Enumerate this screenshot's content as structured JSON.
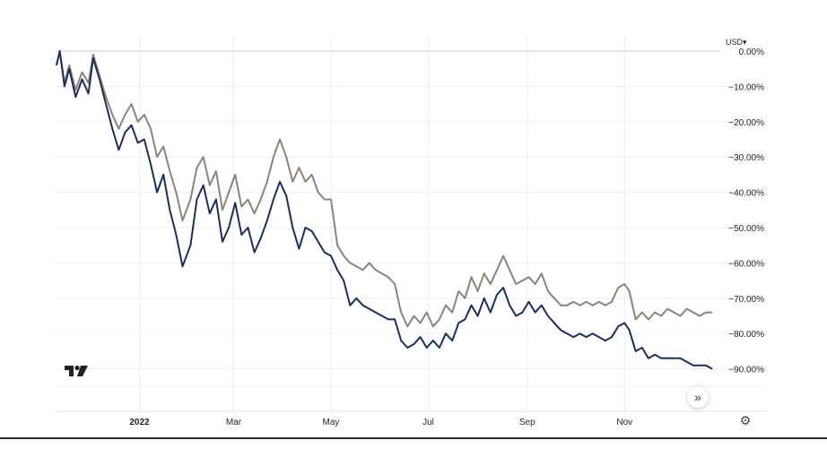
{
  "currency_selector": {
    "label": "USD",
    "icon": "caret-down-icon"
  },
  "scroll_button": {
    "label": "»",
    "icon": "double-chevron-right-icon"
  },
  "settings": {
    "icon": "gear-icon",
    "glyph": "⚙"
  },
  "logo": {
    "icon": "tradingview-logo-icon"
  },
  "colors": {
    "series_dark": "#1c2e5c",
    "series_gray": "#8c8479",
    "grid": "#ebedf0"
  },
  "chart_data": {
    "type": "line",
    "title": "",
    "xlabel": "",
    "ylabel": "",
    "ylim": [
      -93,
      0
    ],
    "y_ticks": [
      "0.00%",
      "−10.00%",
      "−20.00%",
      "−30.00%",
      "−40.00%",
      "−50.00%",
      "−60.00%",
      "−70.00%",
      "−80.00%",
      "−90.00%"
    ],
    "y_tick_values": [
      0,
      -10,
      -20,
      -30,
      -40,
      -50,
      -60,
      -70,
      -80,
      -90
    ],
    "x_ticks": [
      "2022",
      "Mar",
      "May",
      "Jul",
      "Sep",
      "Nov"
    ],
    "x_tick_dates": [
      "2022-01-01",
      "2022-03-01",
      "2022-05-01",
      "2022-07-01",
      "2022-09-01",
      "2022-11-01"
    ],
    "x_range": [
      "2021-11-10",
      "2022-12-31"
    ],
    "grid": true,
    "series": [
      {
        "color": "#1c2e5c",
        "points": [
          [
            "2021-11-10",
            -4
          ],
          [
            "2021-11-12",
            0
          ],
          [
            "2021-11-15",
            -10
          ],
          [
            "2021-11-18",
            -5
          ],
          [
            "2021-11-22",
            -13
          ],
          [
            "2021-11-26",
            -8
          ],
          [
            "2021-11-30",
            -12
          ],
          [
            "2021-12-03",
            -2
          ],
          [
            "2021-12-07",
            -8
          ],
          [
            "2021-12-11",
            -15
          ],
          [
            "2021-12-15",
            -22
          ],
          [
            "2021-12-19",
            -28
          ],
          [
            "2021-12-23",
            -23
          ],
          [
            "2021-12-27",
            -21
          ],
          [
            "2021-12-31",
            -26
          ],
          [
            "2022-01-04",
            -25
          ],
          [
            "2022-01-08",
            -32
          ],
          [
            "2022-01-12",
            -40
          ],
          [
            "2022-01-16",
            -35
          ],
          [
            "2022-01-20",
            -45
          ],
          [
            "2022-01-24",
            -52
          ],
          [
            "2022-01-28",
            -61
          ],
          [
            "2022-02-02",
            -55
          ],
          [
            "2022-02-06",
            -42
          ],
          [
            "2022-02-10",
            -38
          ],
          [
            "2022-02-14",
            -46
          ],
          [
            "2022-02-18",
            -42
          ],
          [
            "2022-02-22",
            -54
          ],
          [
            "2022-02-26",
            -50
          ],
          [
            "2022-03-02",
            -43
          ],
          [
            "2022-03-06",
            -52
          ],
          [
            "2022-03-10",
            -50
          ],
          [
            "2022-03-14",
            -57
          ],
          [
            "2022-03-18",
            -53
          ],
          [
            "2022-03-22",
            -48
          ],
          [
            "2022-03-26",
            -42
          ],
          [
            "2022-03-30",
            -37
          ],
          [
            "2022-04-03",
            -41
          ],
          [
            "2022-04-07",
            -50
          ],
          [
            "2022-04-11",
            -56
          ],
          [
            "2022-04-15",
            -50
          ],
          [
            "2022-04-19",
            -51
          ],
          [
            "2022-04-23",
            -54
          ],
          [
            "2022-04-27",
            -57
          ],
          [
            "2022-05-01",
            -58
          ],
          [
            "2022-05-05",
            -62
          ],
          [
            "2022-05-09",
            -65
          ],
          [
            "2022-05-13",
            -72
          ],
          [
            "2022-05-17",
            -70
          ],
          [
            "2022-05-21",
            -72
          ],
          [
            "2022-05-25",
            -73
          ],
          [
            "2022-05-29",
            -74
          ],
          [
            "2022-06-02",
            -75
          ],
          [
            "2022-06-06",
            -76
          ],
          [
            "2022-06-10",
            -76
          ],
          [
            "2022-06-14",
            -82
          ],
          [
            "2022-06-18",
            -84
          ],
          [
            "2022-06-22",
            -83
          ],
          [
            "2022-06-26",
            -81
          ],
          [
            "2022-06-30",
            -84
          ],
          [
            "2022-07-04",
            -82
          ],
          [
            "2022-07-08",
            -84
          ],
          [
            "2022-07-12",
            -80
          ],
          [
            "2022-07-16",
            -82
          ],
          [
            "2022-07-20",
            -77
          ],
          [
            "2022-07-24",
            -76
          ],
          [
            "2022-07-28",
            -72
          ],
          [
            "2022-08-01",
            -75
          ],
          [
            "2022-08-05",
            -70
          ],
          [
            "2022-08-09",
            -74
          ],
          [
            "2022-08-13",
            -69
          ],
          [
            "2022-08-17",
            -67
          ],
          [
            "2022-08-21",
            -72
          ],
          [
            "2022-08-25",
            -75
          ],
          [
            "2022-08-29",
            -74
          ],
          [
            "2022-09-02",
            -71
          ],
          [
            "2022-09-06",
            -74
          ],
          [
            "2022-09-10",
            -72
          ],
          [
            "2022-09-14",
            -75
          ],
          [
            "2022-09-18",
            -77
          ],
          [
            "2022-09-22",
            -79
          ],
          [
            "2022-09-26",
            -80
          ],
          [
            "2022-09-30",
            -81
          ],
          [
            "2022-10-04",
            -80
          ],
          [
            "2022-10-08",
            -81
          ],
          [
            "2022-10-12",
            -80
          ],
          [
            "2022-10-16",
            -81
          ],
          [
            "2022-10-20",
            -82
          ],
          [
            "2022-10-24",
            -81
          ],
          [
            "2022-10-28",
            -78
          ],
          [
            "2022-11-01",
            -77
          ],
          [
            "2022-11-04",
            -79
          ],
          [
            "2022-11-08",
            -85
          ],
          [
            "2022-11-12",
            -84
          ],
          [
            "2022-11-16",
            -87
          ],
          [
            "2022-11-20",
            -86
          ],
          [
            "2022-11-24",
            -87
          ],
          [
            "2022-11-28",
            -87
          ],
          [
            "2022-12-02",
            -87
          ],
          [
            "2022-12-06",
            -87
          ],
          [
            "2022-12-10",
            -88
          ],
          [
            "2022-12-14",
            -89
          ],
          [
            "2022-12-18",
            -89
          ],
          [
            "2022-12-22",
            -89
          ],
          [
            "2022-12-26",
            -90
          ]
        ]
      },
      {
        "color": "#8c8479",
        "points": [
          [
            "2021-11-10",
            -4
          ],
          [
            "2021-11-12",
            0
          ],
          [
            "2021-11-15",
            -9
          ],
          [
            "2021-11-18",
            -4
          ],
          [
            "2021-11-22",
            -11
          ],
          [
            "2021-11-26",
            -6
          ],
          [
            "2021-11-30",
            -9
          ],
          [
            "2021-12-03",
            -1
          ],
          [
            "2021-12-07",
            -7
          ],
          [
            "2021-12-11",
            -13
          ],
          [
            "2021-12-15",
            -18
          ],
          [
            "2021-12-19",
            -22
          ],
          [
            "2021-12-23",
            -18
          ],
          [
            "2021-12-27",
            -15
          ],
          [
            "2021-12-31",
            -20
          ],
          [
            "2022-01-04",
            -18
          ],
          [
            "2022-01-08",
            -22
          ],
          [
            "2022-01-12",
            -30
          ],
          [
            "2022-01-16",
            -27
          ],
          [
            "2022-01-20",
            -34
          ],
          [
            "2022-01-24",
            -40
          ],
          [
            "2022-01-28",
            -48
          ],
          [
            "2022-02-02",
            -42
          ],
          [
            "2022-02-06",
            -33
          ],
          [
            "2022-02-10",
            -30
          ],
          [
            "2022-02-14",
            -38
          ],
          [
            "2022-02-18",
            -34
          ],
          [
            "2022-02-22",
            -45
          ],
          [
            "2022-02-26",
            -40
          ],
          [
            "2022-03-02",
            -35
          ],
          [
            "2022-03-06",
            -44
          ],
          [
            "2022-03-10",
            -42
          ],
          [
            "2022-03-14",
            -46
          ],
          [
            "2022-03-18",
            -42
          ],
          [
            "2022-03-22",
            -37
          ],
          [
            "2022-03-26",
            -30
          ],
          [
            "2022-03-30",
            -25
          ],
          [
            "2022-04-03",
            -30
          ],
          [
            "2022-04-07",
            -37
          ],
          [
            "2022-04-11",
            -33
          ],
          [
            "2022-04-15",
            -37
          ],
          [
            "2022-04-19",
            -35
          ],
          [
            "2022-04-23",
            -40
          ],
          [
            "2022-04-27",
            -42
          ],
          [
            "2022-05-01",
            -42
          ],
          [
            "2022-05-05",
            -55
          ],
          [
            "2022-05-09",
            -58
          ],
          [
            "2022-05-13",
            -60
          ],
          [
            "2022-05-17",
            -61
          ],
          [
            "2022-05-21",
            -62
          ],
          [
            "2022-05-25",
            -60
          ],
          [
            "2022-05-29",
            -62
          ],
          [
            "2022-06-02",
            -63
          ],
          [
            "2022-06-06",
            -64
          ],
          [
            "2022-06-10",
            -66
          ],
          [
            "2022-06-14",
            -74
          ],
          [
            "2022-06-18",
            -78
          ],
          [
            "2022-06-22",
            -75
          ],
          [
            "2022-06-26",
            -77
          ],
          [
            "2022-06-30",
            -74
          ],
          [
            "2022-07-04",
            -78
          ],
          [
            "2022-07-08",
            -76
          ],
          [
            "2022-07-12",
            -72
          ],
          [
            "2022-07-16",
            -74
          ],
          [
            "2022-07-20",
            -68
          ],
          [
            "2022-07-24",
            -70
          ],
          [
            "2022-07-28",
            -64
          ],
          [
            "2022-08-01",
            -68
          ],
          [
            "2022-08-05",
            -63
          ],
          [
            "2022-08-09",
            -66
          ],
          [
            "2022-08-13",
            -62
          ],
          [
            "2022-08-17",
            -58
          ],
          [
            "2022-08-21",
            -62
          ],
          [
            "2022-08-25",
            -66
          ],
          [
            "2022-08-29",
            -65
          ],
          [
            "2022-09-02",
            -64
          ],
          [
            "2022-09-06",
            -66
          ],
          [
            "2022-09-10",
            -63
          ],
          [
            "2022-09-14",
            -68
          ],
          [
            "2022-09-18",
            -70
          ],
          [
            "2022-09-22",
            -72
          ],
          [
            "2022-09-26",
            -72
          ],
          [
            "2022-09-30",
            -71
          ],
          [
            "2022-10-04",
            -72
          ],
          [
            "2022-10-08",
            -71
          ],
          [
            "2022-10-12",
            -72
          ],
          [
            "2022-10-16",
            -71
          ],
          [
            "2022-10-20",
            -72
          ],
          [
            "2022-10-24",
            -71
          ],
          [
            "2022-10-28",
            -67
          ],
          [
            "2022-11-01",
            -66
          ],
          [
            "2022-11-04",
            -68
          ],
          [
            "2022-11-08",
            -76
          ],
          [
            "2022-11-12",
            -74
          ],
          [
            "2022-11-16",
            -76
          ],
          [
            "2022-11-20",
            -74
          ],
          [
            "2022-11-24",
            -75
          ],
          [
            "2022-11-28",
            -73
          ],
          [
            "2022-12-02",
            -74
          ],
          [
            "2022-12-06",
            -75
          ],
          [
            "2022-12-10",
            -73
          ],
          [
            "2022-12-14",
            -74
          ],
          [
            "2022-12-18",
            -75
          ],
          [
            "2022-12-22",
            -74
          ],
          [
            "2022-12-26",
            -74
          ]
        ]
      }
    ]
  }
}
